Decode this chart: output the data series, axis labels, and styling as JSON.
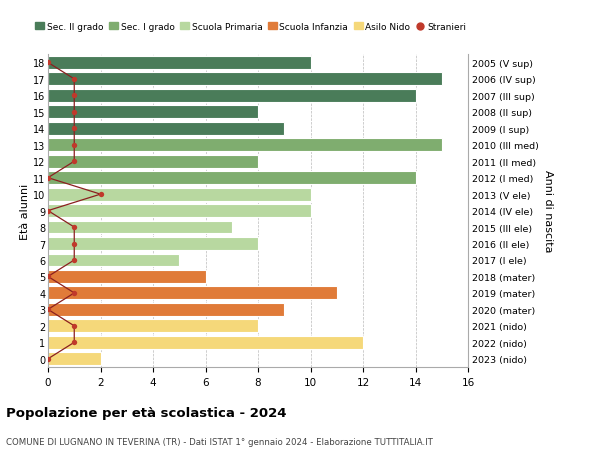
{
  "ages": [
    18,
    17,
    16,
    15,
    14,
    13,
    12,
    11,
    10,
    9,
    8,
    7,
    6,
    5,
    4,
    3,
    2,
    1,
    0
  ],
  "right_labels": [
    "2005 (V sup)",
    "2006 (IV sup)",
    "2007 (III sup)",
    "2008 (II sup)",
    "2009 (I sup)",
    "2010 (III med)",
    "2011 (II med)",
    "2012 (I med)",
    "2013 (V ele)",
    "2014 (IV ele)",
    "2015 (III ele)",
    "2016 (II ele)",
    "2017 (I ele)",
    "2018 (mater)",
    "2019 (mater)",
    "2020 (mater)",
    "2021 (nido)",
    "2022 (nido)",
    "2023 (nido)"
  ],
  "bar_values": [
    10,
    15,
    14,
    8,
    9,
    15,
    8,
    14,
    10,
    10,
    7,
    8,
    5,
    6,
    11,
    9,
    8,
    12,
    2
  ],
  "bar_colors": [
    "#4a7c59",
    "#4a7c59",
    "#4a7c59",
    "#4a7c59",
    "#4a7c59",
    "#7fad6f",
    "#7fad6f",
    "#7fad6f",
    "#b8d8a0",
    "#b8d8a0",
    "#b8d8a0",
    "#b8d8a0",
    "#b8d8a0",
    "#e07b39",
    "#e07b39",
    "#e07b39",
    "#f5d87a",
    "#f5d87a",
    "#f5d87a"
  ],
  "stranieri_values": [
    0,
    1,
    1,
    1,
    1,
    1,
    1,
    0,
    2,
    0,
    1,
    1,
    1,
    0,
    1,
    0,
    1,
    1,
    0
  ],
  "legend_labels": [
    "Sec. II grado",
    "Sec. I grado",
    "Scuola Primaria",
    "Scuola Infanzia",
    "Asilo Nido",
    "Stranieri"
  ],
  "legend_colors": [
    "#4a7c59",
    "#7fad6f",
    "#b8d8a0",
    "#e07b39",
    "#f5d87a",
    "#c0392b"
  ],
  "title": "Popolazione per età scolastica - 2024",
  "subtitle": "COMUNE DI LUGNANO IN TEVERINA (TR) - Dati ISTAT 1° gennaio 2024 - Elaborazione TUTTITALIA.IT",
  "ylabel_left": "Età alunni",
  "ylabel_right": "Anni di nascita",
  "xlim": [
    0,
    16
  ],
  "xticks": [
    0,
    2,
    4,
    6,
    8,
    10,
    12,
    14,
    16
  ],
  "bar_height": 0.78,
  "background_color": "#ffffff",
  "grid_color": "#bbbbbb",
  "stranieri_line_color": "#8b2020",
  "stranieri_dot_color": "#c0392b"
}
